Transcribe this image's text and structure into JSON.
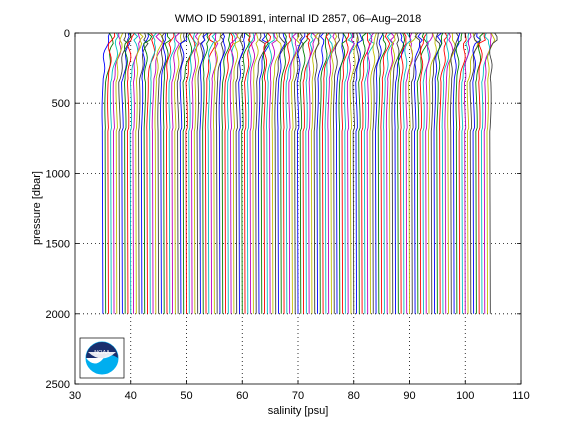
{
  "chart_data": {
    "type": "line",
    "title": "WMO ID 5901891, internal ID 2857, 06–Aug–2018",
    "xlabel": "salinity [psu]",
    "ylabel": "pressure [dbar]",
    "xlim": [
      30,
      110
    ],
    "ylim": [
      0,
      2500
    ],
    "y_reversed": true,
    "x_ticks": [
      30,
      40,
      50,
      60,
      70,
      80,
      90,
      100,
      110
    ],
    "y_ticks": [
      0,
      500,
      1000,
      1500,
      2000,
      2500
    ],
    "grid": true,
    "profile_count": 140,
    "profile_offset_start": 35.0,
    "profile_offset_step": 0.5,
    "max_pressure": 2000,
    "profile_colors": [
      "#0000ff",
      "#008000",
      "#ff0000",
      "#00bfbf",
      "#bf00bf",
      "#bfbf00",
      "#404040"
    ]
  },
  "logo": {
    "label": "NOAA"
  }
}
